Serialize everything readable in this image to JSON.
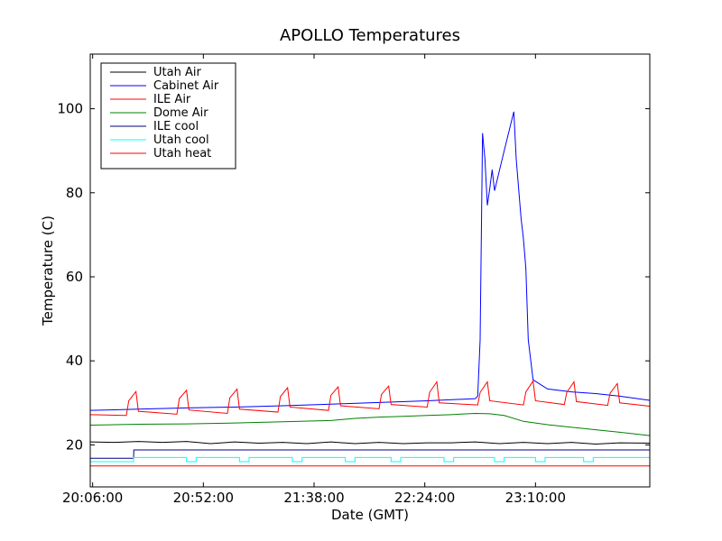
{
  "chart_data": {
    "type": "line",
    "title": "APOLLO Temperatures",
    "xlabel": "Date (GMT)",
    "ylabel": "Temperature (C)",
    "xlim": [
      0,
      232.5
    ],
    "ylim": [
      10,
      113
    ],
    "x_unit": "minutes after 20:05:00 GMT",
    "x_ticks": [
      {
        "value": 1,
        "label": "20:06:00"
      },
      {
        "value": 47,
        "label": "20:52:00"
      },
      {
        "value": 93,
        "label": "21:38:00"
      },
      {
        "value": 139,
        "label": "22:24:00"
      },
      {
        "value": 185,
        "label": "23:10:00"
      }
    ],
    "y_ticks": [
      {
        "value": 20,
        "label": "20"
      },
      {
        "value": 40,
        "label": "40"
      },
      {
        "value": 60,
        "label": "60"
      },
      {
        "value": 80,
        "label": "80"
      },
      {
        "value": 100,
        "label": "100"
      }
    ],
    "legend": {
      "placement": "top-left"
    },
    "series": [
      {
        "name": "Utah Air",
        "color": "#000000",
        "x": [
          0,
          10,
          20,
          30,
          40,
          50,
          60,
          70,
          80,
          90,
          100,
          110,
          120,
          130,
          140,
          150,
          160,
          170,
          180,
          190,
          200,
          210,
          220,
          232.5
        ],
        "y": [
          20.7,
          20.6,
          20.8,
          20.6,
          20.8,
          20.3,
          20.7,
          20.4,
          20.6,
          20.3,
          20.7,
          20.3,
          20.6,
          20.3,
          20.5,
          20.5,
          20.7,
          20.3,
          20.6,
          20.3,
          20.6,
          20.2,
          20.5,
          20.4
        ]
      },
      {
        "name": "Cabinet Air",
        "color": "#0000ff",
        "x": [
          0,
          20,
          40,
          60,
          80,
          100,
          120,
          140,
          160,
          161,
          162,
          163,
          164,
          165,
          166,
          167,
          168,
          172,
          176,
          177,
          179,
          180,
          181,
          182,
          184,
          190,
          200,
          210,
          220,
          232.5
        ],
        "y": [
          28.2,
          28.5,
          28.8,
          29.0,
          29.3,
          29.7,
          30.1,
          30.5,
          31.0,
          31.6,
          45.0,
          94.2,
          88.0,
          77.0,
          81.0,
          85.5,
          80.5,
          90.0,
          99.3,
          88.0,
          74.0,
          69.0,
          62.0,
          45.0,
          35.5,
          33.3,
          32.6,
          32.2,
          31.6,
          30.6
        ]
      },
      {
        "name": "ILE Air",
        "color": "#ff0000",
        "x": [
          0,
          15,
          16,
          19,
          20,
          36,
          37,
          40,
          41,
          57,
          58,
          61,
          62,
          78,
          79,
          82,
          83,
          99,
          100,
          103,
          104,
          120,
          121,
          124,
          125,
          140,
          141,
          144,
          145,
          161,
          162,
          165,
          166,
          180,
          181,
          184,
          185,
          197,
          198,
          201,
          202,
          215,
          216,
          219,
          220,
          232.5
        ],
        "y": [
          27.2,
          27.0,
          30.5,
          32.7,
          28.0,
          27.3,
          31.0,
          33.0,
          28.3,
          27.5,
          31.2,
          33.3,
          28.5,
          27.8,
          31.5,
          33.6,
          29.0,
          28.2,
          31.8,
          33.8,
          29.3,
          28.6,
          32.0,
          34.0,
          29.6,
          29.0,
          32.5,
          35.0,
          30.0,
          29.5,
          32.5,
          35.0,
          30.5,
          29.5,
          32.6,
          35.2,
          30.5,
          29.6,
          32.5,
          35.0,
          30.3,
          29.4,
          32.3,
          34.6,
          30.0,
          29.2
        ]
      },
      {
        "name": "Dome Air",
        "color": "#008000",
        "x": [
          0,
          20,
          40,
          60,
          80,
          100,
          110,
          120,
          130,
          140,
          150,
          160,
          166,
          172,
          180,
          190,
          200,
          210,
          220,
          232.5
        ],
        "y": [
          24.7,
          24.9,
          25.0,
          25.2,
          25.5,
          25.8,
          26.3,
          26.6,
          26.8,
          27.0,
          27.2,
          27.5,
          27.4,
          27.0,
          25.6,
          24.8,
          24.2,
          23.6,
          23.0,
          22.2
        ]
      },
      {
        "name": "ILE cool",
        "color": "#000080",
        "x": [
          0,
          18,
          18.1,
          232.5
        ],
        "y": [
          16.8,
          16.8,
          18.8,
          18.8
        ]
      },
      {
        "name": "Utah cool",
        "color": "#00ffff",
        "x": [
          0,
          18,
          18,
          40,
          40,
          44,
          44,
          62,
          62,
          66,
          66,
          84,
          84,
          88,
          88,
          106,
          106,
          110,
          110,
          125,
          125,
          129,
          129,
          147,
          147,
          151,
          151,
          168,
          168,
          172,
          172,
          185,
          185,
          189,
          189,
          205,
          205,
          209,
          209,
          232.5
        ],
        "y": [
          16.0,
          16.0,
          17.0,
          17.0,
          16.0,
          16.0,
          17.0,
          17.0,
          16.0,
          16.0,
          17.0,
          17.0,
          16.0,
          16.0,
          17.0,
          17.0,
          16.0,
          16.0,
          17.0,
          17.0,
          16.0,
          16.0,
          17.0,
          17.0,
          16.0,
          16.0,
          17.0,
          17.0,
          16.0,
          16.0,
          17.0,
          17.0,
          16.0,
          16.0,
          17.0,
          17.0,
          16.0,
          16.0,
          17.0,
          17.0
        ]
      },
      {
        "name": "Utah heat",
        "color": "#ff0000",
        "x": [
          0,
          232.5
        ],
        "y": [
          15.0,
          15.0
        ]
      }
    ]
  }
}
